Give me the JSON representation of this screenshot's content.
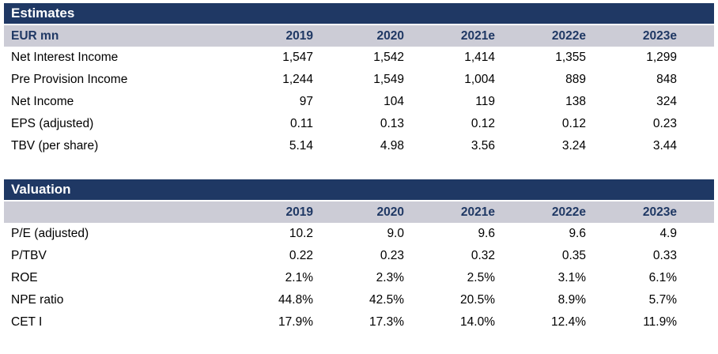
{
  "colors": {
    "navy": "#1f3864",
    "header_row_bg": "#ccccd6",
    "body_text": "#000000",
    "page_bg": "#ffffff"
  },
  "tables": [
    {
      "title": "Estimates",
      "first_col_header": "EUR mn",
      "columns": [
        "2019",
        "2020",
        "2021e",
        "2022e",
        "2023e"
      ],
      "rows": [
        {
          "label": "Net Interest Income",
          "values": [
            "1,547",
            "1,542",
            "1,414",
            "1,355",
            "1,299"
          ]
        },
        {
          "label": "Pre Provision Income",
          "values": [
            "1,244",
            "1,549",
            "1,004",
            "889",
            "848"
          ]
        },
        {
          "label": "Net Income",
          "values": [
            "97",
            "104",
            "119",
            "138",
            "324"
          ]
        },
        {
          "label": "EPS (adjusted)",
          "values": [
            "0.11",
            "0.13",
            "0.12",
            "0.12",
            "0.23"
          ]
        },
        {
          "label": "TBV (per share)",
          "values": [
            "5.14",
            "4.98",
            "3.56",
            "3.24",
            "3.44"
          ]
        }
      ]
    },
    {
      "title": "Valuation",
      "first_col_header": "",
      "columns": [
        "2019",
        "2020",
        "2021e",
        "2022e",
        "2023e"
      ],
      "rows": [
        {
          "label": "P/E (adjusted)",
          "values": [
            "10.2",
            "9.0",
            "9.6",
            "9.6",
            "4.9"
          ]
        },
        {
          "label": "P/TBV",
          "values": [
            "0.22",
            "0.23",
            "0.32",
            "0.35",
            "0.33"
          ]
        },
        {
          "label": "ROE",
          "values": [
            "2.1%",
            "2.3%",
            "2.5%",
            "3.1%",
            "6.1%"
          ]
        },
        {
          "label": "NPE ratio",
          "values": [
            "44.8%",
            "42.5%",
            "20.5%",
            "8.9%",
            "5.7%"
          ]
        },
        {
          "label": "CET I",
          "values": [
            "17.9%",
            "17.3%",
            "14.0%",
            "12.4%",
            "11.9%"
          ]
        }
      ]
    }
  ]
}
